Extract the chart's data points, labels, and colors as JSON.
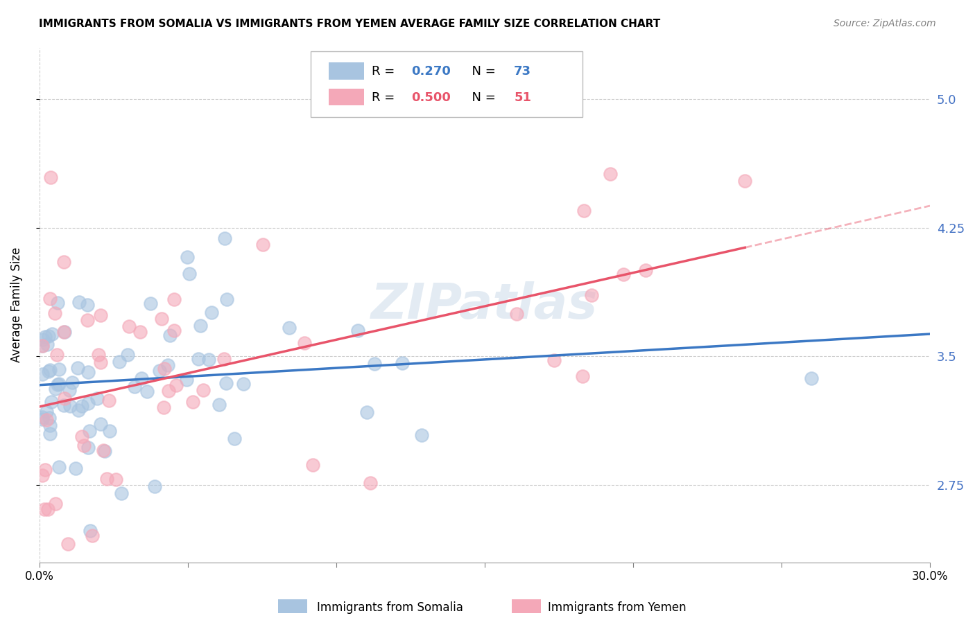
{
  "title": "IMMIGRANTS FROM SOMALIA VS IMMIGRANTS FROM YEMEN AVERAGE FAMILY SIZE CORRELATION CHART",
  "source": "Source: ZipAtlas.com",
  "ylabel": "Average Family Size",
  "xlabel_somalia": "Immigrants from Somalia",
  "xlabel_yemen": "Immigrants from Yemen",
  "xlim": [
    0.0,
    0.3
  ],
  "ylim": [
    2.3,
    5.3
  ],
  "yticks": [
    2.75,
    3.5,
    4.25,
    5.0
  ],
  "xticks": [
    0.0,
    0.05,
    0.1,
    0.15,
    0.2,
    0.25,
    0.3
  ],
  "xtick_labels": [
    "0.0%",
    "",
    "",
    "",
    "",
    "",
    "30.0%"
  ],
  "r_somalia": 0.27,
  "n_somalia": 73,
  "r_yemen": 0.5,
  "n_yemen": 51,
  "somalia_color": "#a8c4e0",
  "yemen_color": "#f4a8b8",
  "somalia_line_color": "#3b78c4",
  "yemen_line_color": "#e8546a",
  "right_axis_color": "#4472c4",
  "watermark": "ZIPatlas"
}
